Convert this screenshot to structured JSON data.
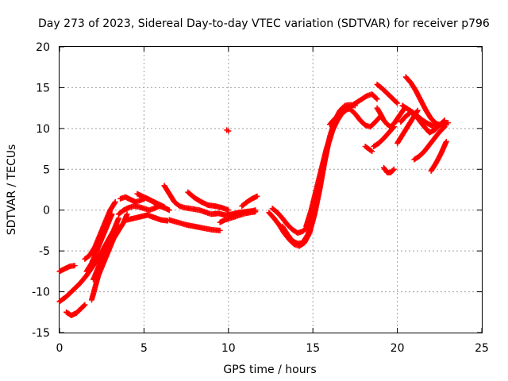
{
  "chart_data": {
    "type": "scatter",
    "title": "Day 273 of 2023, Sidereal Day-to-day VTEC variation (SDTVAR) for receiver p796",
    "xlabel": "GPS time / hours",
    "ylabel": "SDTVAR / TECUs",
    "xlim": [
      0,
      25
    ],
    "ylim": [
      -15,
      20
    ],
    "xticks": [
      "0",
      "5",
      "10",
      "15",
      "20",
      "25"
    ],
    "yticks": [
      "-15",
      "-10",
      "-5",
      "0",
      "5",
      "10",
      "15",
      "20"
    ],
    "grid": true,
    "marker": "plus",
    "color": "#ff0000",
    "series": [
      {
        "x": [
          0.0,
          0.3,
          0.6,
          0.9
        ],
        "y": [
          -7.5,
          -7.2,
          -6.9,
          -6.8
        ]
      },
      {
        "x": [
          0.0,
          0.4,
          0.8,
          1.2,
          1.6,
          2.0,
          2.4,
          2.8,
          3.2,
          3.5
        ],
        "y": [
          -11.2,
          -10.6,
          -9.8,
          -9.0,
          -8.0,
          -6.8,
          -5.5,
          -4.0,
          -2.5,
          -1.0
        ]
      },
      {
        "x": [
          0.4,
          0.7,
          1.0,
          1.3,
          1.5
        ],
        "y": [
          -12.5,
          -12.9,
          -12.6,
          -12.0,
          -11.6
        ]
      },
      {
        "x": [
          1.5,
          1.8,
          2.1,
          2.4,
          2.7,
          3.0,
          3.3
        ],
        "y": [
          -6.0,
          -5.5,
          -4.5,
          -3.0,
          -1.5,
          0.0,
          1.0
        ]
      },
      {
        "x": [
          1.9,
          2.1,
          2.3,
          2.6,
          2.9,
          3.2,
          3.5
        ],
        "y": [
          -11.0,
          -9.5,
          -8.0,
          -6.5,
          -5.0,
          -3.5,
          -2.0
        ]
      },
      {
        "x": [
          2.0,
          2.3,
          2.6,
          2.9,
          3.2,
          3.5,
          3.8,
          4.0
        ],
        "y": [
          -8.5,
          -7.0,
          -5.5,
          -4.5,
          -3.5,
          -2.5,
          -1.5,
          -0.5
        ]
      },
      {
        "x": [
          1.6,
          1.9,
          2.2,
          2.5,
          2.8,
          3.1
        ],
        "y": [
          -7.5,
          -6.5,
          -5.0,
          -3.5,
          -2.0,
          -0.5
        ]
      },
      {
        "x": [
          3.5,
          3.8,
          4.1,
          4.4,
          4.7,
          5.0,
          5.3,
          5.6,
          5.9,
          6.2,
          6.5
        ],
        "y": [
          -0.5,
          0.0,
          0.3,
          0.5,
          0.4,
          0.2,
          0.0,
          0.2,
          0.5,
          0.3,
          0.0
        ]
      },
      {
        "x": [
          3.6,
          3.9,
          4.2,
          4.5,
          4.8,
          5.1,
          5.4,
          5.7,
          6.0
        ],
        "y": [
          1.4,
          1.6,
          1.3,
          1.0,
          1.2,
          1.5,
          1.2,
          0.8,
          0.5
        ]
      },
      {
        "x": [
          4.0,
          4.4,
          4.8,
          5.2,
          5.6,
          6.0,
          6.4
        ],
        "y": [
          -1.2,
          -1.0,
          -0.8,
          -0.6,
          -0.9,
          -1.2,
          -1.3
        ]
      },
      {
        "x": [
          4.6,
          5.0,
          5.4,
          5.8,
          6.2
        ],
        "y": [
          2.0,
          1.6,
          1.2,
          0.8,
          0.4
        ]
      },
      {
        "x": [
          6.2,
          6.5,
          6.8,
          7.1,
          7.4,
          7.7,
          8.0,
          8.3,
          8.7,
          9.0,
          9.4,
          9.8,
          10.2,
          10.6,
          11.0,
          11.4,
          11.6
        ],
        "y": [
          3.0,
          2.0,
          1.0,
          0.5,
          0.3,
          0.2,
          0.1,
          0.0,
          -0.3,
          -0.5,
          -0.4,
          -0.6,
          -0.5,
          -0.3,
          -0.2,
          -0.1,
          0.0
        ]
      },
      {
        "x": [
          6.5,
          7.0,
          7.5,
          8.0,
          8.5,
          9.0,
          9.5
        ],
        "y": [
          -1.2,
          -1.5,
          -1.8,
          -2.0,
          -2.2,
          -2.4,
          -2.5
        ]
      },
      {
        "x": [
          7.6,
          8.0,
          8.4,
          8.8,
          9.2,
          9.6,
          10.0
        ],
        "y": [
          2.2,
          1.5,
          1.0,
          0.6,
          0.5,
          0.3,
          0.0
        ]
      },
      {
        "x": [
          9.5,
          9.8,
          10.1,
          10.4,
          10.7,
          11.0,
          11.3,
          11.6
        ],
        "y": [
          -1.5,
          -1.2,
          -1.0,
          -0.8,
          -0.6,
          -0.4,
          -0.3,
          -0.2
        ]
      },
      {
        "x": [
          10.8,
          11.1,
          11.4,
          11.7
        ],
        "y": [
          0.5,
          1.0,
          1.4,
          1.7
        ]
      },
      {
        "x": [
          9.9,
          10.0
        ],
        "y": [
          9.8,
          9.7
        ]
      },
      {
        "x": [
          12.4,
          12.7,
          13.0,
          13.3,
          13.6,
          13.9,
          14.2,
          14.5,
          14.8,
          15.1,
          15.4,
          15.7,
          16.0,
          16.3,
          16.6,
          16.9,
          17.2,
          17.5
        ],
        "y": [
          -0.3,
          -1.0,
          -1.8,
          -2.8,
          -3.6,
          -4.2,
          -4.4,
          -4.0,
          -2.8,
          -0.5,
          2.5,
          6.0,
          9.0,
          11.0,
          12.2,
          12.8,
          12.9,
          12.8
        ]
      },
      {
        "x": [
          12.6,
          12.9,
          13.2,
          13.5,
          13.8,
          14.1,
          14.4,
          14.7,
          15.0
        ],
        "y": [
          0.2,
          -0.3,
          -1.0,
          -1.8,
          -2.4,
          -2.8,
          -2.6,
          -2.0,
          -1.0
        ]
      },
      {
        "x": [
          13.2,
          13.5,
          13.8,
          14.1,
          14.4,
          14.7,
          15.0,
          15.3,
          15.6,
          15.9,
          16.2,
          16.5,
          16.8,
          17.1
        ],
        "y": [
          -2.0,
          -3.0,
          -3.8,
          -4.1,
          -4.0,
          -3.0,
          -1.0,
          2.0,
          5.0,
          8.0,
          10.0,
          11.5,
          12.3,
          12.6
        ]
      },
      {
        "x": [
          14.6,
          14.9,
          15.2,
          15.5,
          15.8,
          16.1,
          16.4,
          16.7,
          17.0,
          17.3,
          17.6,
          17.9,
          18.2,
          18.5,
          18.8
        ],
        "y": [
          -2.0,
          0.0,
          2.5,
          5.0,
          7.5,
          9.5,
          10.8,
          11.8,
          12.3,
          12.8,
          13.2,
          13.6,
          14.0,
          14.2,
          13.6
        ]
      },
      {
        "x": [
          16.0,
          16.3,
          16.6,
          16.9,
          17.2,
          17.5,
          17.8,
          18.1,
          18.4,
          18.7,
          19.0
        ],
        "y": [
          10.5,
          11.2,
          11.8,
          12.3,
          12.4,
          11.8,
          11.0,
          10.4,
          10.2,
          10.8,
          11.5
        ]
      },
      {
        "x": [
          18.1,
          18.3,
          18.5
        ],
        "y": [
          7.8,
          7.5,
          7.2
        ]
      },
      {
        "x": [
          18.6,
          18.9,
          19.2,
          19.5,
          19.8
        ],
        "y": [
          7.8,
          8.2,
          8.8,
          9.5,
          10.2
        ]
      },
      {
        "x": [
          18.8,
          19.1,
          19.4,
          19.7,
          20.0
        ],
        "y": [
          15.4,
          14.9,
          14.3,
          13.7,
          13.1
        ]
      },
      {
        "x": [
          18.8,
          19.0,
          19.2,
          19.4,
          19.6,
          19.8,
          20.0,
          20.2,
          20.4
        ],
        "y": [
          12.5,
          11.8,
          11.0,
          10.5,
          10.2,
          10.6,
          11.2,
          11.8,
          12.4
        ]
      },
      {
        "x": [
          19.2,
          19.4,
          19.6,
          19.8
        ],
        "y": [
          5.2,
          4.6,
          4.6,
          5.0
        ]
      },
      {
        "x": [
          20.0,
          20.3,
          20.6,
          20.9,
          21.2
        ],
        "y": [
          8.2,
          9.2,
          10.2,
          11.2,
          12.2
        ]
      },
      {
        "x": [
          20.3,
          20.6,
          20.9,
          21.2,
          21.5,
          21.8,
          22.1,
          22.4,
          22.7,
          23.0
        ],
        "y": [
          12.8,
          12.4,
          12.0,
          11.5,
          11.0,
          10.6,
          10.3,
          10.4,
          10.6,
          10.7
        ]
      },
      {
        "x": [
          20.5,
          20.8,
          21.1,
          21.4,
          21.7,
          22.0,
          22.3,
          22.6,
          22.9
        ],
        "y": [
          16.3,
          15.6,
          14.6,
          13.4,
          12.2,
          11.2,
          10.6,
          10.4,
          10.5
        ]
      },
      {
        "x": [
          21.0,
          21.3,
          21.6,
          21.9,
          22.2,
          22.5,
          22.8
        ],
        "y": [
          11.8,
          11.0,
          10.2,
          9.5,
          9.8,
          10.4,
          11.0
        ]
      },
      {
        "x": [
          21.0,
          21.3,
          21.6,
          21.9,
          22.2,
          22.5,
          22.8
        ],
        "y": [
          6.2,
          6.6,
          7.2,
          8.0,
          8.8,
          9.6,
          10.2
        ]
      },
      {
        "x": [
          22.0,
          22.3,
          22.6,
          22.9
        ],
        "y": [
          4.8,
          5.8,
          7.0,
          8.4
        ]
      },
      {
        "x": [
          20.2,
          20.5,
          20.8,
          21.1,
          21.4
        ],
        "y": [
          10.8,
          11.5,
          12.0,
          11.5,
          11.0
        ]
      }
    ]
  }
}
